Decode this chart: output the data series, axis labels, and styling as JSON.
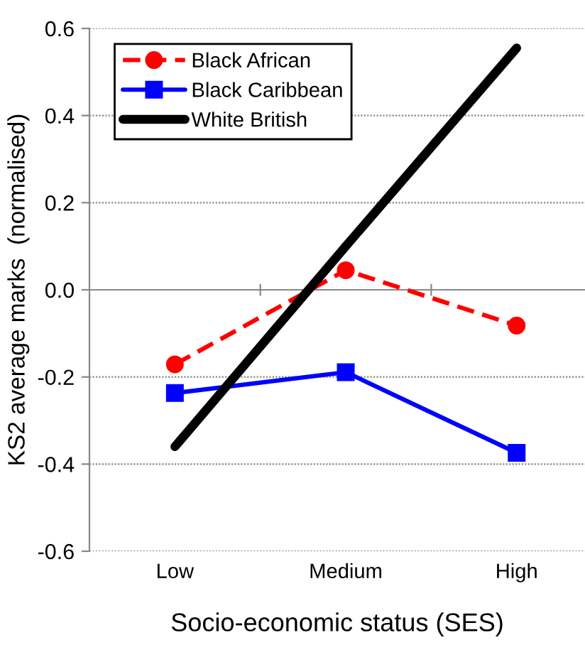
{
  "chart_data": {
    "type": "line",
    "xlabel": "Socio-economic status (SES)",
    "ylabel": "KS2 average marks  (normalised)",
    "categories": [
      "Low",
      "Medium",
      "High"
    ],
    "series": [
      {
        "name": "Black African",
        "color": "#ff0000",
        "values": [
          -0.171,
          0.045,
          -0.082
        ],
        "marker": "circle",
        "line_style": "dashed"
      },
      {
        "name": "Black Caribbean",
        "color": "#0000ff",
        "values": [
          -0.237,
          -0.189,
          -0.374
        ],
        "marker": "square",
        "line_style": "solid"
      },
      {
        "name": "White British",
        "color": "#000000",
        "values": [
          -0.36,
          0.1,
          0.555
        ],
        "marker": "none",
        "line_style": "solid"
      }
    ],
    "ylim": [
      -0.6,
      0.6
    ],
    "yticks": [
      {
        "value": -0.6,
        "label": "-0.6"
      },
      {
        "value": -0.4,
        "label": "-0.4"
      },
      {
        "value": -0.2,
        "label": "-0.2"
      },
      {
        "value": 0,
        "label": "0.0"
      },
      {
        "value": 0.2,
        "label": "0.2"
      },
      {
        "value": 0.4,
        "label": "0.4"
      },
      {
        "value": 0.6,
        "label": "0.6"
      }
    ],
    "grid": "y",
    "legend": "top left"
  }
}
